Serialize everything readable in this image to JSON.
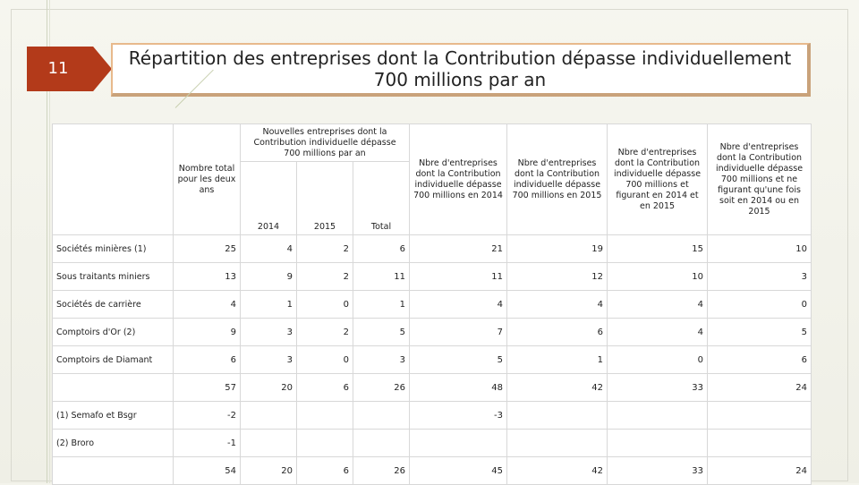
{
  "slide": {
    "number": "11",
    "title": "Répartition des entreprises dont la Contribution dépasse individuellement 700 millions par an"
  },
  "table": {
    "headers": {
      "total_two_years": "Nombre total pour les deux ans",
      "new_group": "Nouvelles entreprises dont la Contribution individuelle dépasse 700 millions par an",
      "y2014": "2014",
      "y2015": "2015",
      "total": "Total",
      "n2014": "Nbre d'entreprises dont la Contribution individuelle dépasse 700 millions en 2014",
      "n2015": "Nbre d'entreprises dont la Contribution individuelle dépasse 700 millions en 2015",
      "n_both": "Nbre d'entreprises dont la Contribution individuelle dépasse 700 millions et figurant en 2014 et en 2015",
      "n_once": "Nbre d'entreprises dont la Contribution individuelle dépasse 700 millions et ne figurant qu'une fois soit en 2014 ou en 2015"
    },
    "rows": [
      {
        "label": "Sociétés minières (1)",
        "values": [
          "25",
          "4",
          "2",
          "6",
          "21",
          "19",
          "15",
          "10"
        ]
      },
      {
        "label": "Sous traitants miniers",
        "values": [
          "13",
          "9",
          "2",
          "11",
          "11",
          "12",
          "10",
          "3"
        ]
      },
      {
        "label": "Sociétés de carrière",
        "values": [
          "4",
          "1",
          "0",
          "1",
          "4",
          "4",
          "4",
          "0"
        ]
      },
      {
        "label": "Comptoirs d'Or (2)",
        "values": [
          "9",
          "3",
          "2",
          "5",
          "7",
          "6",
          "4",
          "5"
        ]
      },
      {
        "label": "Comptoirs de Diamant",
        "values": [
          "6",
          "3",
          "0",
          "3",
          "5",
          "1",
          "0",
          "6"
        ]
      },
      {
        "label": "",
        "values": [
          "57",
          "20",
          "6",
          "26",
          "48",
          "42",
          "33",
          "24"
        ]
      },
      {
        "label": "(1) Semafo et Bsgr",
        "values": [
          "-2",
          "",
          "",
          "",
          "-3",
          "",
          "",
          ""
        ]
      },
      {
        "label": "(2) Broro",
        "values": [
          "-1",
          "",
          "",
          "",
          "",
          "",
          "",
          ""
        ]
      },
      {
        "label": "",
        "values": [
          "54",
          "20",
          "6",
          "26",
          "45",
          "42",
          "33",
          "24"
        ]
      }
    ]
  }
}
